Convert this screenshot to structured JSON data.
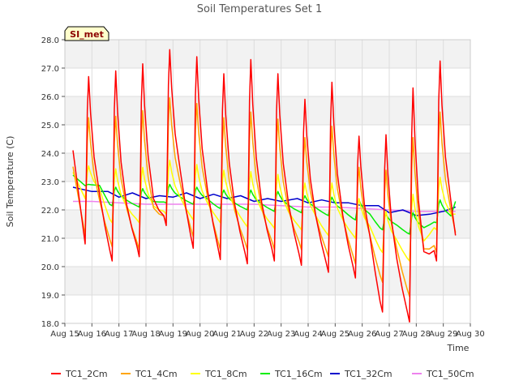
{
  "chart_data": {
    "type": "line",
    "title": "Soil Temperatures Set 1",
    "xlabel": "Time",
    "ylabel": "Soil Temperature (C)",
    "ylim": [
      18.0,
      28.0
    ],
    "xlim": [
      15.0,
      30.0
    ],
    "yticks": [
      "18.0",
      "19.0",
      "20.0",
      "21.0",
      "22.0",
      "23.0",
      "24.0",
      "25.0",
      "26.0",
      "27.0",
      "28.0"
    ],
    "xticks": [
      {
        "v": 15,
        "label": "Aug 15"
      },
      {
        "v": 16,
        "label": "Aug 16"
      },
      {
        "v": 17,
        "label": "Aug 17"
      },
      {
        "v": 18,
        "label": "Aug 18"
      },
      {
        "v": 19,
        "label": "Aug 19"
      },
      {
        "v": 20,
        "label": "Aug 20"
      },
      {
        "v": 21,
        "label": "Aug 21"
      },
      {
        "v": 22,
        "label": "Aug 22"
      },
      {
        "v": 23,
        "label": "Aug 23"
      },
      {
        "v": 24,
        "label": "Aug 24"
      },
      {
        "v": 25,
        "label": "Aug 25"
      },
      {
        "v": 26,
        "label": "Aug 26"
      },
      {
        "v": 27,
        "label": "Aug 27"
      },
      {
        "v": 28,
        "label": "Aug 28"
      },
      {
        "v": 29,
        "label": "Aug 29"
      },
      {
        "v": 30,
        "label": "Aug 30"
      }
    ],
    "annotation": "SI_met",
    "grid": true,
    "legend_position": "bottom",
    "series": [
      {
        "name": "TC1_2Cm",
        "color": "#ff0000",
        "day_start": 15.3,
        "day_end": 29.45,
        "peaks": [
          26.7,
          26.9,
          27.15,
          27.65,
          27.4,
          26.8,
          27.3,
          26.8,
          25.9,
          26.5,
          24.6,
          24.65,
          26.3,
          27.25
        ],
        "troughs": [
          20.8,
          20.2,
          20.35,
          21.45,
          20.65,
          20.25,
          20.1,
          20.2,
          20.05,
          19.8,
          19.6,
          18.4,
          18.05,
          20.2,
          21.1
        ]
      },
      {
        "name": "TC1_4Cm",
        "color": "#ffa500",
        "day_start": 15.3,
        "day_end": 29.45,
        "peaks": [
          25.25,
          25.3,
          25.5,
          25.95,
          25.75,
          25.25,
          25.45,
          25.2,
          24.55,
          24.95,
          23.5,
          23.4,
          24.55,
          25.45
        ],
        "troughs": [
          21.1,
          20.7,
          20.6,
          21.55,
          21.05,
          20.6,
          20.6,
          20.6,
          20.6,
          20.35,
          20.1,
          19.45,
          18.95,
          20.5,
          21.2
        ]
      },
      {
        "name": "TC1_8Cm",
        "color": "#ffff00",
        "day_start": 15.3,
        "day_end": 29.45,
        "peaks": [
          23.55,
          23.45,
          23.5,
          23.75,
          23.6,
          23.4,
          23.35,
          23.25,
          22.95,
          22.95,
          22.4,
          21.95,
          22.55,
          23.15
        ],
        "troughs": [
          22.4,
          21.55,
          21.55,
          21.85,
          21.65,
          21.55,
          21.4,
          21.35,
          21.3,
          21.1,
          21.0,
          20.5,
          20.2,
          21.3,
          21.85
        ]
      },
      {
        "name": "TC1_16Cm",
        "color": "#00ee00",
        "day_start": 15.3,
        "day_end": 29.45,
        "peaks": [
          22.9,
          22.8,
          22.75,
          22.9,
          22.8,
          22.7,
          22.7,
          22.65,
          22.5,
          22.45,
          22.35,
          21.85,
          21.9,
          22.35
        ],
        "troughs": [
          22.85,
          22.15,
          22.1,
          22.25,
          22.2,
          22.05,
          22.0,
          21.95,
          21.9,
          21.8,
          21.65,
          21.3,
          21.15,
          21.55,
          22.3
        ]
      },
      {
        "name": "TC1_32Cm",
        "color": "#0000cc",
        "day_start": 15.3,
        "day_end": 29.45,
        "points": [
          [
            15.3,
            22.8
          ],
          [
            16.0,
            22.65
          ],
          [
            16.6,
            22.65
          ],
          [
            17.0,
            22.45
          ],
          [
            17.5,
            22.6
          ],
          [
            18.0,
            22.4
          ],
          [
            18.5,
            22.5
          ],
          [
            19.0,
            22.45
          ],
          [
            19.5,
            22.6
          ],
          [
            20.0,
            22.4
          ],
          [
            20.5,
            22.55
          ],
          [
            21.0,
            22.4
          ],
          [
            21.5,
            22.5
          ],
          [
            22.0,
            22.3
          ],
          [
            22.5,
            22.4
          ],
          [
            23.0,
            22.3
          ],
          [
            23.6,
            22.4
          ],
          [
            24.0,
            22.25
          ],
          [
            24.5,
            22.35
          ],
          [
            25.0,
            22.25
          ],
          [
            25.5,
            22.25
          ],
          [
            26.0,
            22.15
          ],
          [
            26.6,
            22.15
          ],
          [
            27.0,
            21.9
          ],
          [
            27.5,
            22.0
          ],
          [
            28.0,
            21.8
          ],
          [
            28.5,
            21.85
          ],
          [
            29.0,
            21.95
          ],
          [
            29.45,
            22.1
          ]
        ]
      },
      {
        "name": "TC1_50Cm",
        "color": "#ee82ee",
        "day_start": 15.3,
        "day_end": 29.45,
        "points": [
          [
            15.3,
            22.3
          ],
          [
            16.0,
            22.3
          ],
          [
            17.0,
            22.25
          ],
          [
            18.0,
            22.2
          ],
          [
            19.0,
            22.2
          ],
          [
            20.0,
            22.2
          ],
          [
            21.0,
            22.2
          ],
          [
            22.0,
            22.2
          ],
          [
            23.0,
            22.15
          ],
          [
            24.0,
            22.1
          ],
          [
            25.0,
            22.1
          ],
          [
            26.0,
            22.05
          ],
          [
            27.0,
            22.0
          ],
          [
            28.0,
            21.95
          ],
          [
            29.0,
            21.95
          ],
          [
            29.45,
            21.95
          ]
        ]
      }
    ]
  }
}
